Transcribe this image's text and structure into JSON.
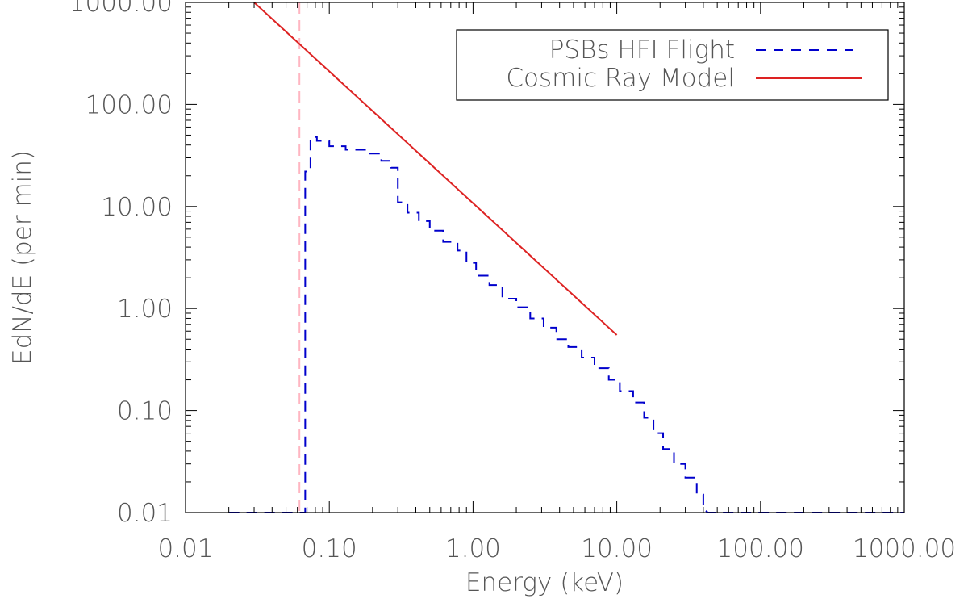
{
  "chart_data": {
    "type": "line",
    "xlabel": "Energy (keV)",
    "ylabel": "EdN/dE (per min)",
    "xscale": "log",
    "yscale": "log",
    "xlim": [
      0.01,
      1000
    ],
    "ylim": [
      0.01,
      1000
    ],
    "xticks": [
      0.01,
      0.1,
      1,
      10,
      100,
      1000
    ],
    "xtick_labels": [
      "0.01",
      "0.10",
      "1.00",
      "10.00",
      "100.00",
      "1000.00"
    ],
    "yticks": [
      0.01,
      0.1,
      1,
      10,
      100,
      1000
    ],
    "ytick_labels": [
      "0.01",
      "0.10",
      "1.00",
      "10.00",
      "100.00",
      "1000.00"
    ],
    "grid": false,
    "legend_position": "top-right",
    "series": [
      {
        "name": "PSBs HFI Flight",
        "style": "dashed-step",
        "color": "#0000cc",
        "x": [
          0.02,
          0.068,
          0.068,
          0.074,
          0.074,
          0.082,
          0.082,
          0.1,
          0.1,
          0.13,
          0.13,
          0.18,
          0.18,
          0.23,
          0.23,
          0.27,
          0.27,
          0.3,
          0.3,
          0.35,
          0.35,
          0.42,
          0.42,
          0.5,
          0.5,
          0.62,
          0.62,
          0.78,
          0.78,
          0.9,
          0.9,
          1.05,
          1.05,
          1.3,
          1.3,
          1.6,
          1.6,
          2.0,
          2.0,
          2.5,
          2.5,
          3.1,
          3.1,
          3.8,
          3.8,
          4.6,
          4.6,
          5.7,
          5.7,
          7.0,
          7.0,
          8.8,
          8.8,
          10.5,
          10.5,
          13.0,
          13.0,
          15.5,
          15.5,
          18.0,
          18.0,
          21.0,
          21.0,
          25.0,
          25.0,
          30.0,
          30.0,
          36.0,
          36.0,
          40.0,
          40.0,
          43.0,
          200.0,
          1000.0
        ],
        "y": [
          0.01,
          0.01,
          22,
          22,
          48,
          48,
          44,
          44,
          39,
          39,
          36,
          36,
          33,
          33,
          28,
          28,
          24,
          24,
          11,
          11,
          8.7,
          8.7,
          7.2,
          7.2,
          5.8,
          5.8,
          4.5,
          4.5,
          3.7,
          3.7,
          2.8,
          2.8,
          2.1,
          2.1,
          1.7,
          1.7,
          1.25,
          1.25,
          1.03,
          1.03,
          0.8,
          0.8,
          0.65,
          0.65,
          0.5,
          0.5,
          0.42,
          0.42,
          0.33,
          0.33,
          0.26,
          0.26,
          0.2,
          0.2,
          0.155,
          0.155,
          0.12,
          0.12,
          0.085,
          0.085,
          0.06,
          0.06,
          0.042,
          0.042,
          0.03,
          0.03,
          0.022,
          0.022,
          0.015,
          0.015,
          0.011,
          0.01,
          0.01,
          0.01
        ]
      },
      {
        "name": "Cosmic Ray Model",
        "style": "solid",
        "color": "#dd2222",
        "x": [
          0.03,
          10.0
        ],
        "y": [
          1000,
          0.55
        ]
      }
    ],
    "reference_lines": [
      {
        "orientation": "vertical",
        "x": 0.062,
        "style": "dashed",
        "color": "#ffb6c1"
      }
    ]
  }
}
